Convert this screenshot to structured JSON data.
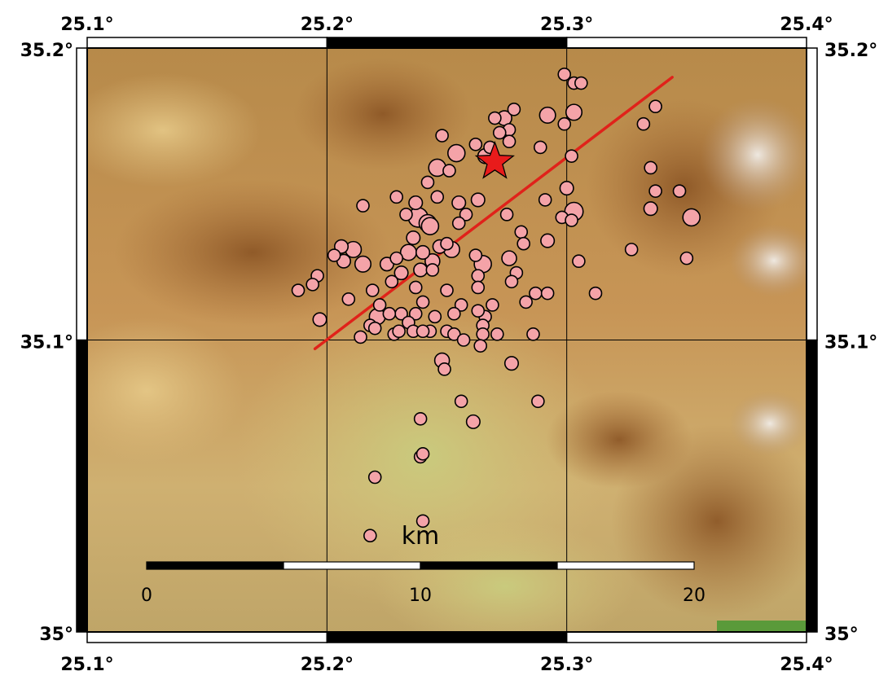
{
  "map": {
    "lon_range": [
      25.1,
      25.4
    ],
    "lat_range": [
      35.0,
      35.2
    ],
    "lon_ticks": [
      "25.1°",
      "25.2°",
      "25.3°",
      "25.4°"
    ],
    "lat_ticks": [
      "35°",
      "35.1°",
      "35.2°"
    ],
    "lon_tick_values": [
      25.1,
      25.2,
      25.3,
      25.4
    ],
    "lat_tick_values": [
      35.0,
      35.1,
      35.2
    ],
    "gridlines": true,
    "colors": {
      "event_fill": "#f4a3a8",
      "event_stroke": "#000000",
      "fault_line": "#e0221a",
      "mainshock": "#e81b1b"
    }
  },
  "mainshock": {
    "lon": 25.27,
    "lat": 35.161,
    "symbol": "star-icon"
  },
  "fault": {
    "start": {
      "lon": 25.195,
      "lat": 35.097
    },
    "end": {
      "lon": 25.344,
      "lat": 35.19
    }
  },
  "scale_bar": {
    "unit": "km",
    "labels": [
      "0",
      "10",
      "20"
    ],
    "segments_km": [
      0,
      5,
      10,
      15,
      20
    ]
  },
  "events": [
    [
      25.299,
      35.191,
      1
    ],
    [
      25.303,
      35.188,
      1
    ],
    [
      25.306,
      35.188,
      1
    ],
    [
      25.303,
      35.178,
      1.3
    ],
    [
      25.337,
      35.18,
      1
    ],
    [
      25.332,
      35.174,
      1
    ],
    [
      25.292,
      35.177,
      1.3
    ],
    [
      25.299,
      35.174,
      1
    ],
    [
      25.278,
      35.179,
      1
    ],
    [
      25.27,
      35.176,
      1
    ],
    [
      25.274,
      35.176,
      1.2
    ],
    [
      25.276,
      35.172,
      1
    ],
    [
      25.272,
      35.171,
      1
    ],
    [
      25.276,
      35.168,
      1
    ],
    [
      25.268,
      35.166,
      1
    ],
    [
      25.248,
      35.17,
      1
    ],
    [
      25.262,
      35.167,
      1
    ],
    [
      25.266,
      35.163,
      1.2
    ],
    [
      25.254,
      35.164,
      1.4
    ],
    [
      25.246,
      35.159,
      1.4
    ],
    [
      25.251,
      35.158,
      1
    ],
    [
      25.289,
      35.166,
      1
    ],
    [
      25.302,
      35.163,
      1
    ],
    [
      25.335,
      35.159,
      1
    ],
    [
      25.337,
      35.151,
      1
    ],
    [
      25.347,
      35.151,
      1
    ],
    [
      25.335,
      35.145,
      1.1
    ],
    [
      25.352,
      35.142,
      1.4
    ],
    [
      25.3,
      35.152,
      1.1
    ],
    [
      25.291,
      35.148,
      1
    ],
    [
      25.303,
      35.144,
      1.5
    ],
    [
      25.298,
      35.142,
      1
    ],
    [
      25.302,
      35.141,
      1
    ],
    [
      25.242,
      35.154,
      1
    ],
    [
      25.229,
      35.149,
      1
    ],
    [
      25.237,
      35.147,
      1.1
    ],
    [
      25.246,
      35.149,
      1
    ],
    [
      25.255,
      35.147,
      1.1
    ],
    [
      25.263,
      35.148,
      1.1
    ],
    [
      25.258,
      35.143,
      1
    ],
    [
      25.275,
      35.143,
      1
    ],
    [
      25.281,
      35.137,
      1
    ],
    [
      25.292,
      35.134,
      1.1
    ],
    [
      25.282,
      35.133,
      1
    ],
    [
      25.215,
      35.146,
      1
    ],
    [
      25.233,
      35.143,
      1
    ],
    [
      25.238,
      35.142,
      1.6
    ],
    [
      25.242,
      35.14,
      1.4
    ],
    [
      25.236,
      35.135,
      1.1
    ],
    [
      25.243,
      35.139,
      1.4
    ],
    [
      25.234,
      35.13,
      1.3
    ],
    [
      25.24,
      35.13,
      1.1
    ],
    [
      25.247,
      35.132,
      1.1
    ],
    [
      25.252,
      35.131,
      1.3
    ],
    [
      25.25,
      35.133,
      1
    ],
    [
      25.255,
      35.14,
      1
    ],
    [
      25.244,
      35.127,
      1.2
    ],
    [
      25.239,
      35.124,
      1.1
    ],
    [
      25.244,
      35.124,
      1
    ],
    [
      25.262,
      35.129,
      1
    ],
    [
      25.265,
      35.126,
      1.4
    ],
    [
      25.276,
      35.128,
      1.2
    ],
    [
      25.279,
      35.123,
      1
    ],
    [
      25.277,
      35.12,
      1
    ],
    [
      25.263,
      35.122,
      1
    ],
    [
      25.263,
      35.118,
      1
    ],
    [
      25.229,
      35.128,
      1
    ],
    [
      25.225,
      35.126,
      1.1
    ],
    [
      25.231,
      35.123,
      1.1
    ],
    [
      25.227,
      35.12,
      1
    ],
    [
      25.219,
      35.117,
      1
    ],
    [
      25.237,
      35.118,
      1
    ],
    [
      25.24,
      35.113,
      1
    ],
    [
      25.25,
      35.117,
      1
    ],
    [
      25.287,
      35.116,
      1
    ],
    [
      25.206,
      35.132,
      1.1
    ],
    [
      25.211,
      35.131,
      1.3
    ],
    [
      25.203,
      35.129,
      1
    ],
    [
      25.207,
      35.127,
      1.1
    ],
    [
      25.215,
      35.126,
      1.3
    ],
    [
      25.196,
      35.122,
      1
    ],
    [
      25.194,
      35.119,
      1
    ],
    [
      25.188,
      35.117,
      1
    ],
    [
      25.209,
      35.114,
      1
    ],
    [
      25.222,
      35.112,
      1
    ],
    [
      25.231,
      35.109,
      1
    ],
    [
      25.237,
      35.109,
      1
    ],
    [
      25.256,
      35.112,
      1
    ],
    [
      25.269,
      35.112,
      1
    ],
    [
      25.283,
      35.113,
      1
    ],
    [
      25.292,
      35.116,
      1
    ],
    [
      25.226,
      35.109,
      1
    ],
    [
      25.234,
      35.106,
      1
    ],
    [
      25.245,
      35.108,
      1
    ],
    [
      25.266,
      35.108,
      1
    ],
    [
      25.265,
      35.105,
      1
    ],
    [
      25.253,
      35.109,
      1
    ],
    [
      25.263,
      35.11,
      1
    ],
    [
      25.218,
      35.105,
      1
    ],
    [
      25.221,
      35.108,
      1.3
    ],
    [
      25.228,
      35.102,
      1
    ],
    [
      25.243,
      35.103,
      1
    ],
    [
      25.197,
      35.107,
      1.1
    ],
    [
      25.214,
      35.101,
      1
    ],
    [
      25.22,
      35.104,
      1
    ],
    [
      25.23,
      35.103,
      1
    ],
    [
      25.236,
      35.103,
      1
    ],
    [
      25.24,
      35.103,
      1
    ],
    [
      25.25,
      35.103,
      1
    ],
    [
      25.253,
      35.102,
      1
    ],
    [
      25.265,
      35.102,
      1
    ],
    [
      25.271,
      35.102,
      1
    ],
    [
      25.286,
      35.102,
      1
    ],
    [
      25.312,
      35.116,
      1
    ],
    [
      25.35,
      35.128,
      1
    ],
    [
      25.327,
      35.131,
      1
    ],
    [
      25.305,
      35.127,
      1
    ],
    [
      25.257,
      35.1,
      1
    ],
    [
      25.264,
      35.098,
      1
    ],
    [
      25.248,
      35.093,
      1.2
    ],
    [
      25.249,
      35.09,
      1
    ],
    [
      25.277,
      35.092,
      1.1
    ],
    [
      25.256,
      35.079,
      1
    ],
    [
      25.261,
      35.072,
      1.1
    ],
    [
      25.239,
      35.073,
      1
    ],
    [
      25.288,
      35.079,
      1
    ],
    [
      25.239,
      35.06,
      1
    ],
    [
      25.24,
      35.061,
      1
    ],
    [
      25.22,
      35.053,
      1
    ],
    [
      25.24,
      35.038,
      1
    ],
    [
      25.218,
      35.033,
      1
    ]
  ]
}
